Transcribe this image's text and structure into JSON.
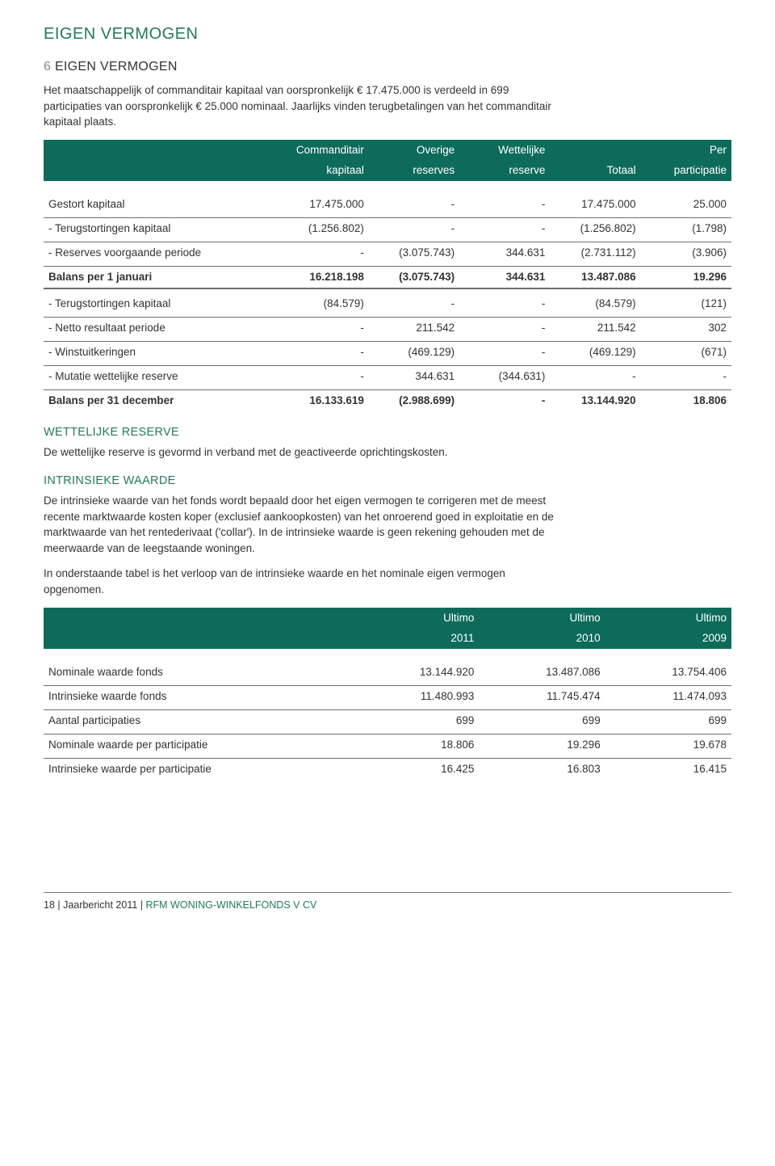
{
  "page_title": "EIGEN VERMOGEN",
  "section_no": "6",
  "section_title": "EIGEN VERMOGEN",
  "intro_p1": "Het maatschappelijk of commanditair kapitaal van oorspronkelijk € 17.475.000 is verdeeld in 699 participaties van oorspronkelijk € 25.000 nominaal. Jaarlijks vinden terugbetalingen van het commanditair kapitaal plaats.",
  "t1": {
    "header1": [
      "",
      "Commanditair",
      "Overige",
      "Wettelijke",
      "",
      "Per"
    ],
    "header2": [
      "",
      "kapitaal",
      "reserves",
      "reserve",
      "Totaal",
      "participatie"
    ],
    "rows_a": [
      [
        "Gestort kapitaal",
        "17.475.000",
        "-",
        "-",
        "17.475.000",
        "25.000"
      ],
      [
        "- Terugstortingen kapitaal",
        "(1.256.802)",
        "-",
        "-",
        "(1.256.802)",
        "(1.798)"
      ],
      [
        "- Reserves voorgaande periode",
        "-",
        "(3.075.743)",
        "344.631",
        "(2.731.112)",
        "(3.906)"
      ]
    ],
    "bal_a": [
      "Balans per 1 januari",
      "16.218.198",
      "(3.075.743)",
      "344.631",
      "13.487.086",
      "19.296"
    ],
    "rows_b": [
      [
        "- Terugstortingen kapitaal",
        "(84.579)",
        "-",
        "-",
        "(84.579)",
        "(121)"
      ],
      [
        "- Netto resultaat periode",
        "-",
        "211.542",
        "-",
        "211.542",
        "302"
      ],
      [
        "- Winstuitkeringen",
        "-",
        "(469.129)",
        "-",
        "(469.129)",
        "(671)"
      ],
      [
        "- Mutatie wettelijke reserve",
        "-",
        "344.631",
        "(344.631)",
        "-",
        "-"
      ]
    ],
    "bal_b": [
      "Balans per 31 december",
      "16.133.619",
      "(2.988.699)",
      "-",
      "13.144.920",
      "18.806"
    ]
  },
  "wettelijke_title": "WETTELIJKE RESERVE",
  "wettelijke_p": "De wettelijke reserve is gevormd in verband met de geactiveerde oprichtingskosten.",
  "intrinsieke_title": "INTRINSIEKE WAARDE",
  "intrinsieke_p1": "De intrinsieke waarde van het fonds wordt bepaald door het eigen vermogen te corrigeren met de meest recente marktwaarde kosten koper (exclusief aankoopkosten) van het onroerend goed in exploitatie en de marktwaarde van het rentederivaat ('collar'). In de intrinsieke waarde is geen rekening gehouden met de meerwaarde van de leegstaande woningen.",
  "intrinsieke_p2": "In onderstaande tabel is het verloop van de intrinsieke waarde en het nominale eigen vermogen opgenomen.",
  "t2": {
    "header1": [
      "",
      "Ultimo",
      "Ultimo",
      "Ultimo"
    ],
    "header2": [
      "",
      "2011",
      "2010",
      "2009"
    ],
    "rows": [
      [
        "Nominale waarde fonds",
        "13.144.920",
        "13.487.086",
        "13.754.406"
      ],
      [
        "Intrinsieke waarde fonds",
        "11.480.993",
        "11.745.474",
        "11.474.093"
      ],
      [
        "Aantal participaties",
        "699",
        "699",
        "699"
      ],
      [
        "Nominale waarde per participatie",
        "18.806",
        "19.296",
        "19.678"
      ],
      [
        "Intrinsieke waarde per participatie",
        "16.425",
        "16.803",
        "16.415"
      ]
    ]
  },
  "footer": {
    "page": "18",
    "sep": " | ",
    "title": "Jaarbericht 2011",
    "sub": "RFM WONING-WINKELFONDS V CV"
  }
}
